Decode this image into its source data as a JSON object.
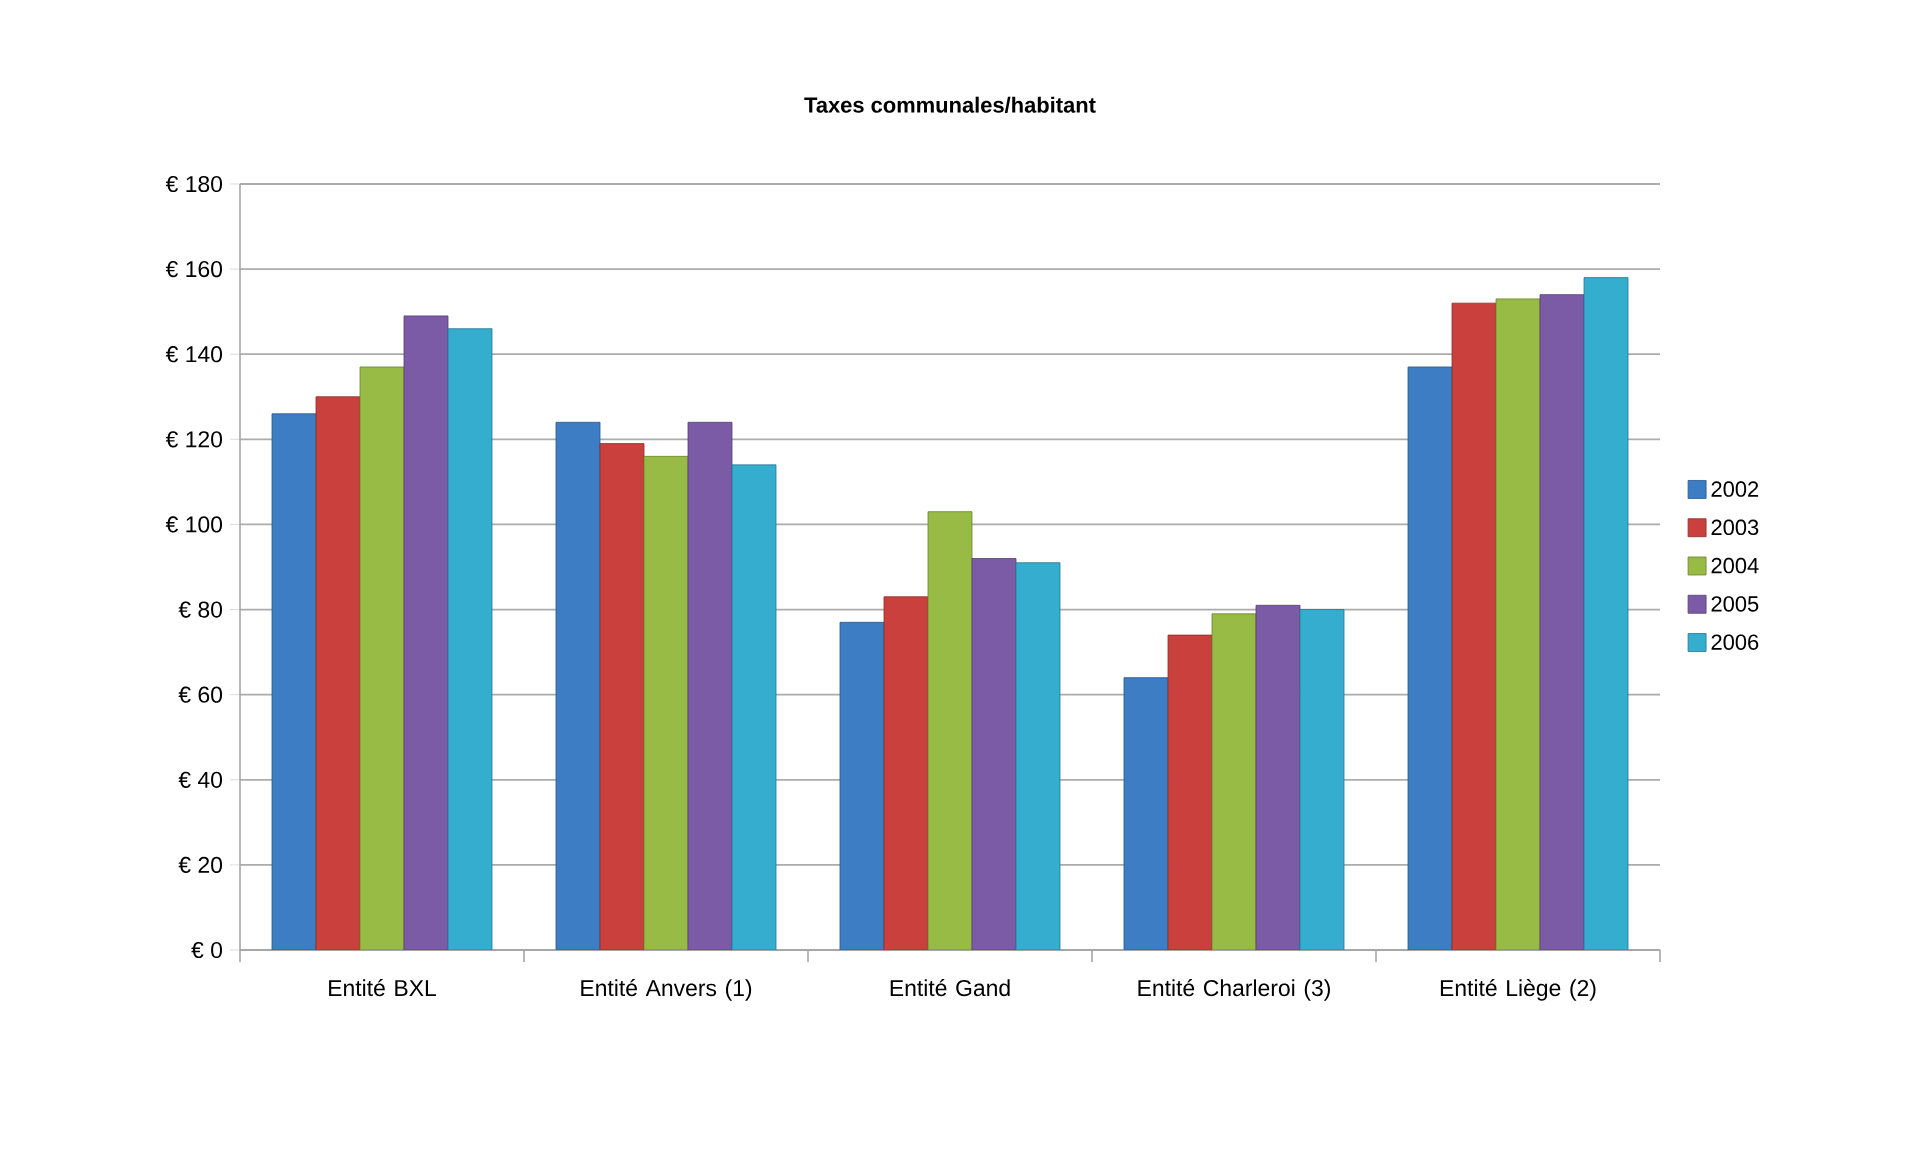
{
  "chart_data": {
    "type": "bar",
    "title": "Taxes communales/habitant",
    "categories": [
      "Entité BXL",
      "Entité Anvers (1)",
      "Entité Gand",
      "Entité Charleroi (3)",
      "Entité Liège (2)"
    ],
    "series": [
      {
        "name": "2002",
        "color": "#3c7dc4",
        "values": [
          126,
          124,
          77,
          64,
          137
        ]
      },
      {
        "name": "2003",
        "color": "#c9403c",
        "values": [
          130,
          119,
          83,
          74,
          152
        ]
      },
      {
        "name": "2004",
        "color": "#98bb45",
        "values": [
          137,
          116,
          103,
          79,
          153
        ]
      },
      {
        "name": "2005",
        "color": "#7b5ba6",
        "values": [
          149,
          124,
          92,
          81,
          154
        ]
      },
      {
        "name": "2006",
        "color": "#35adcf",
        "values": [
          146,
          114,
          91,
          80,
          158
        ]
      }
    ],
    "ylim": [
      0,
      180
    ],
    "yticks": [
      {
        "value": 0,
        "label": "€ 0"
      },
      {
        "value": 20,
        "label": "€ 20"
      },
      {
        "value": 40,
        "label": "€ 40"
      },
      {
        "value": 60,
        "label": "€ 60"
      },
      {
        "value": 80,
        "label": "€ 80"
      },
      {
        "value": 100,
        "label": "€ 100"
      },
      {
        "value": 120,
        "label": "€ 120"
      },
      {
        "value": 140,
        "label": "€ 140"
      },
      {
        "value": 160,
        "label": "€ 160"
      },
      {
        "value": 180,
        "label": "€ 180"
      }
    ],
    "grid": "y",
    "legend": "right"
  }
}
